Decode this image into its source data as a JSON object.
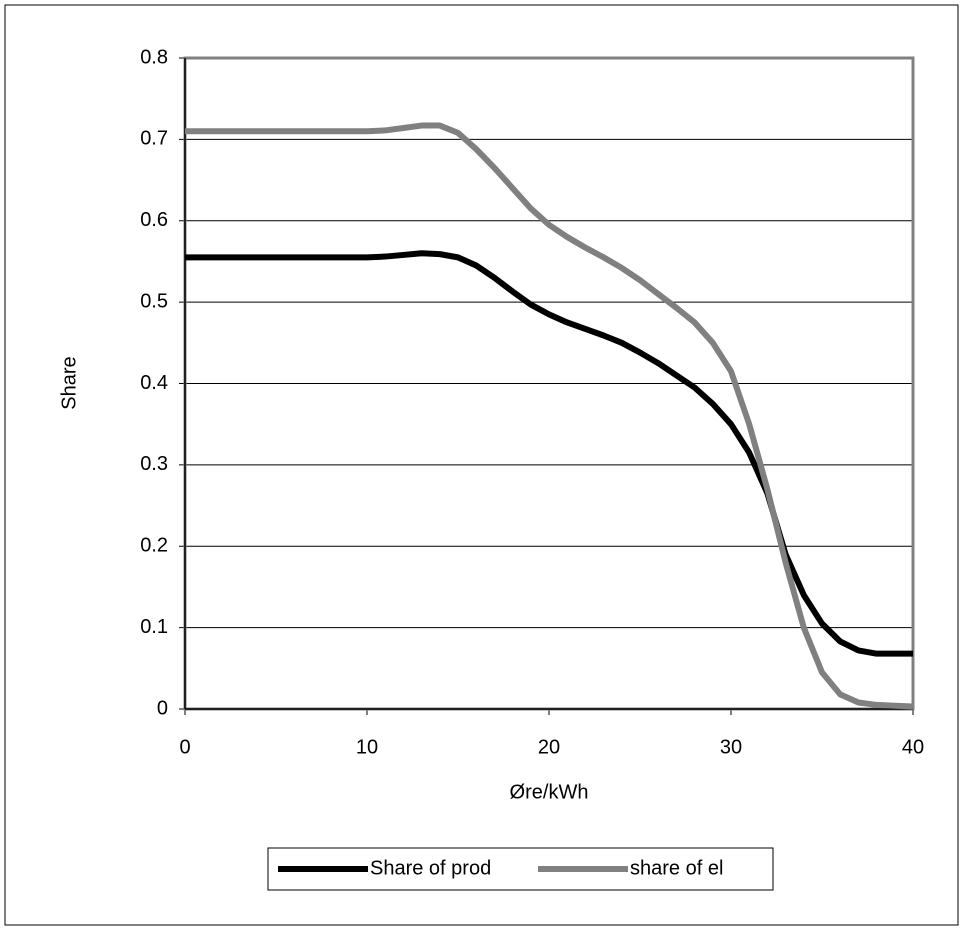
{
  "chart_data": {
    "type": "line",
    "x_label": "Øre/kWh",
    "y_label": "Share",
    "x": [
      0,
      1,
      2,
      3,
      4,
      5,
      6,
      7,
      8,
      9,
      10,
      11,
      12,
      13,
      14,
      15,
      16,
      17,
      18,
      19,
      20,
      21,
      22,
      23,
      24,
      25,
      26,
      27,
      28,
      29,
      30,
      31,
      32,
      33,
      34,
      35,
      36,
      37,
      38,
      39,
      40
    ],
    "series": [
      {
        "name": "Share of prod",
        "color": "#000000",
        "values": [
          0.555,
          0.555,
          0.555,
          0.555,
          0.555,
          0.555,
          0.555,
          0.555,
          0.555,
          0.555,
          0.555,
          0.556,
          0.558,
          0.56,
          0.559,
          0.555,
          0.545,
          0.53,
          0.513,
          0.497,
          0.485,
          0.475,
          0.467,
          0.459,
          0.45,
          0.438,
          0.425,
          0.41,
          0.395,
          0.375,
          0.35,
          0.315,
          0.265,
          0.19,
          0.14,
          0.105,
          0.083,
          0.072,
          0.068,
          0.068,
          0.068
        ]
      },
      {
        "name": "share of el",
        "color": "#808080",
        "values": [
          0.71,
          0.71,
          0.71,
          0.71,
          0.71,
          0.71,
          0.71,
          0.71,
          0.71,
          0.71,
          0.71,
          0.711,
          0.714,
          0.717,
          0.717,
          0.708,
          0.688,
          0.665,
          0.64,
          0.615,
          0.595,
          0.58,
          0.567,
          0.555,
          0.542,
          0.527,
          0.51,
          0.493,
          0.475,
          0.45,
          0.415,
          0.35,
          0.27,
          0.18,
          0.1,
          0.045,
          0.018,
          0.008,
          0.005,
          0.004,
          0.003
        ]
      }
    ],
    "xlim": [
      0,
      40
    ],
    "xticks": [
      0,
      10,
      20,
      30,
      40
    ],
    "ylim": [
      0,
      0.8
    ],
    "yticks": [
      0,
      0.1,
      0.2,
      0.3,
      0.4,
      0.5,
      0.6,
      0.7,
      0.8
    ],
    "grid": true
  }
}
